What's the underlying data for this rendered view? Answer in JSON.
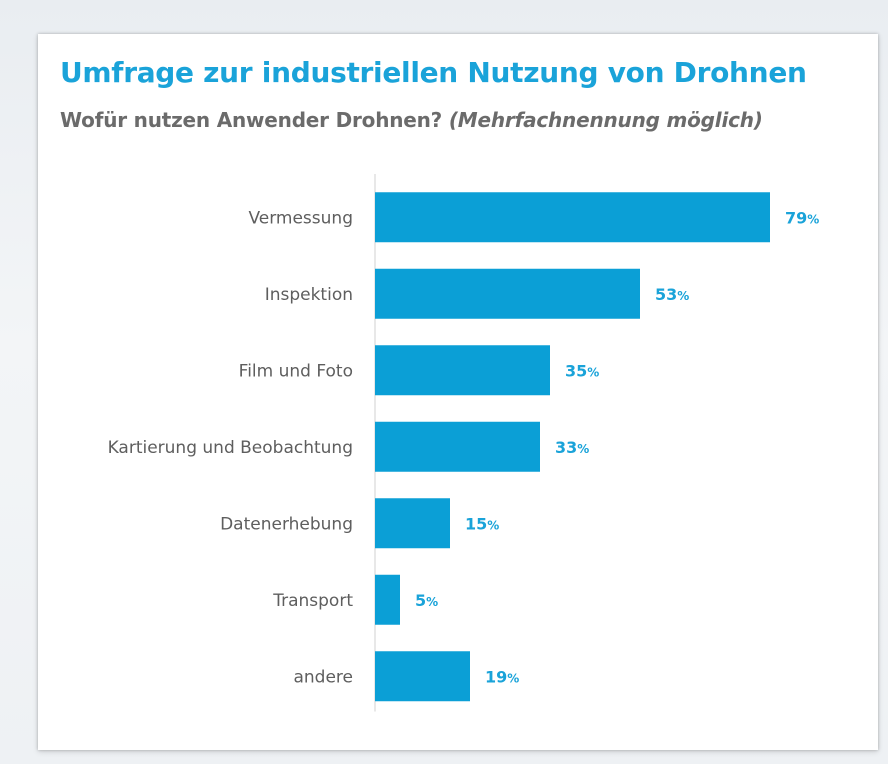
{
  "colors": {
    "accent": "#1aa3d9",
    "bar": "#0b9fd6",
    "axis": "#d0d0d0",
    "label": "#5e5e5e",
    "subtitle": "#6b6b6b"
  },
  "chart_data": {
    "type": "bar",
    "orientation": "horizontal",
    "title": "Umfrage zur industriellen Nutzung von Drohnen",
    "subtitle": "Wofür nutzen Anwender Drohnen?",
    "subtitle_note": "(Mehrfachnennung möglich)",
    "categories": [
      "Vermessung",
      "Inspektion",
      "Film und Foto",
      "Kartierung und Beobachtung",
      "Datenerhebung",
      "Transport",
      "andere"
    ],
    "values": [
      79,
      53,
      35,
      33,
      15,
      5,
      19
    ],
    "value_suffix": "%",
    "xlim": [
      0,
      100
    ],
    "grid": false,
    "legend": "none"
  }
}
